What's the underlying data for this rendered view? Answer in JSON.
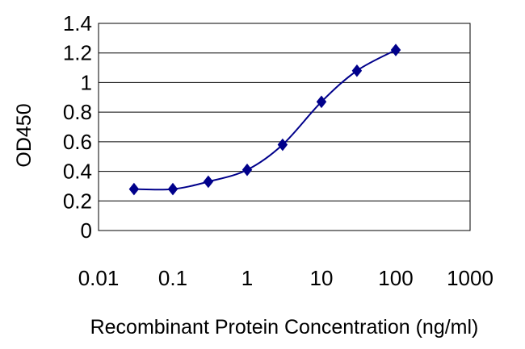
{
  "chart_data": {
    "type": "line",
    "title": "",
    "xlabel": "Recombinant Protein Concentration (ng/ml)",
    "ylabel": "OD450",
    "x_scale": "log",
    "xlim": [
      0.01,
      1000
    ],
    "ylim": [
      0,
      1.4
    ],
    "x_ticks": [
      "0.01",
      "0.1",
      "1",
      "10",
      "100",
      "1000"
    ],
    "y_ticks": [
      "0",
      "0.2",
      "0.4",
      "0.6",
      "0.8",
      "1",
      "1.2",
      "1.4"
    ],
    "grid": "horizontal",
    "series": [
      {
        "x": [
          0.03,
          0.1,
          0.3,
          1,
          3,
          10,
          30,
          100
        ],
        "y": [
          0.28,
          0.28,
          0.33,
          0.41,
          0.58,
          0.87,
          1.08,
          1.22
        ],
        "color": "#00008B",
        "marker": "diamond"
      }
    ]
  }
}
